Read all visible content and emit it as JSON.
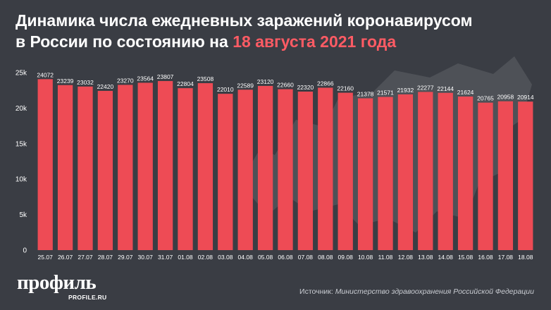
{
  "header": {
    "title_line1": "Динамика числа ежедневных заражений коронавирусом",
    "title_line2_prefix": "в России по состоянию на ",
    "title_line2_date": "18 августа 2021 года"
  },
  "colors": {
    "background": "#3a3d44",
    "bar": "#ee4b55",
    "highlight": "#ff5b64",
    "text": "#ffffff"
  },
  "chart_data": {
    "type": "bar",
    "categories": [
      "25.07",
      "26.07",
      "27.07",
      "28.07",
      "29.07",
      "30.07",
      "31.07",
      "01.08",
      "02.08",
      "03.08",
      "04.08",
      "05.08",
      "06.08",
      "07.08",
      "08.08",
      "09.08",
      "10.08",
      "11.08",
      "12.08",
      "13.08",
      "14.08",
      "15.08",
      "16.08",
      "17.08",
      "18.08"
    ],
    "values": [
      24072,
      23239,
      23032,
      22420,
      23270,
      23564,
      23807,
      22804,
      23508,
      22010,
      22589,
      23120,
      22660,
      22320,
      22866,
      22160,
      21378,
      21571,
      21932,
      22277,
      22144,
      21624,
      20765,
      20958,
      20914
    ],
    "y_ticks": [
      0,
      5000,
      10000,
      15000,
      20000,
      25000
    ],
    "y_tick_labels": [
      "0",
      "5k",
      "10k",
      "15k",
      "20k",
      "25k"
    ],
    "ylim": [
      0,
      25000
    ],
    "grid": false,
    "legend": "none"
  },
  "footer": {
    "logo": "профиль",
    "logo_sub": "PROFILE.RU",
    "source_label": "Источник:",
    "source_text": "Министерство здравоохранения Российской Федерации"
  }
}
